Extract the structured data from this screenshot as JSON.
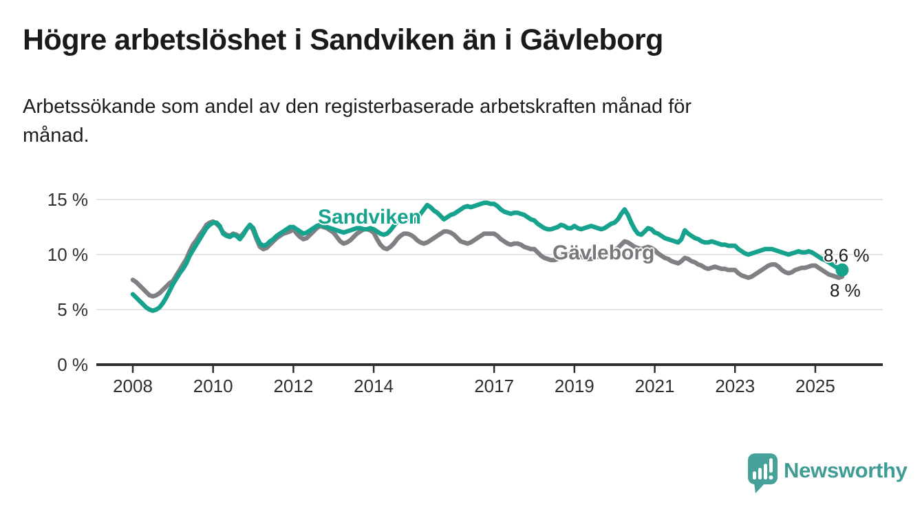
{
  "header": {
    "title": "Högre arbetslöshet i Sandviken än i Gävleborg",
    "subtitle": "Arbetssökande som andel av den registerbaserade arbetskraften månad för månad.",
    "subtitle_lines": [
      "Arbetssökande som andel av den registerbaserade arbetskraften månad för",
      "månad."
    ]
  },
  "chart_data": {
    "type": "line",
    "title": "Högre arbetslöshet i Sandviken än i Gävleborg",
    "xlabel": "",
    "ylabel": "",
    "unit": "%",
    "frequency": "monthly",
    "start": "2008-01",
    "end": "2025-09",
    "ylim": [
      0,
      15.5
    ],
    "grid": true,
    "grid_color": "#e4e4e4",
    "axis_color": "#2e2e2e",
    "yticks": [
      {
        "value": 0,
        "label": "0 %"
      },
      {
        "value": 5,
        "label": "5 %"
      },
      {
        "value": 10,
        "label": "10 %"
      },
      {
        "value": 15,
        "label": "15 %"
      }
    ],
    "xticks": [
      {
        "value": 2008,
        "label": "2008"
      },
      {
        "value": 2010,
        "label": "2010"
      },
      {
        "value": 2012,
        "label": "2012"
      },
      {
        "value": 2014,
        "label": "2014"
      },
      {
        "value": 2017,
        "label": "2017"
      },
      {
        "value": 2019,
        "label": "2019"
      },
      {
        "value": 2021,
        "label": "2021"
      },
      {
        "value": 2023,
        "label": "2023"
      },
      {
        "value": 2025,
        "label": "2025"
      }
    ],
    "series": [
      {
        "name": "Sandviken",
        "color": "#17a28e",
        "final_label": "8,6 %",
        "final_value": 8.6,
        "end_dot": true,
        "values": [
          6.4,
          6.1,
          5.8,
          5.5,
          5.2,
          5.0,
          4.9,
          5.0,
          5.2,
          5.6,
          6.1,
          6.7,
          7.3,
          7.8,
          8.3,
          8.7,
          9.2,
          9.9,
          10.4,
          10.9,
          11.4,
          11.9,
          12.4,
          12.7,
          12.9,
          12.9,
          12.6,
          11.9,
          11.7,
          11.6,
          11.8,
          11.7,
          11.4,
          11.8,
          12.3,
          12.7,
          12.4,
          11.6,
          11.0,
          10.8,
          10.9,
          11.2,
          11.4,
          11.7,
          11.9,
          12.1,
          12.3,
          12.5,
          12.5,
          12.3,
          12.1,
          11.9,
          12.0,
          12.2,
          12.4,
          12.6,
          12.7,
          12.6,
          12.5,
          12.4,
          12.3,
          12.2,
          12.1,
          12.0,
          12.1,
          12.2,
          12.3,
          12.4,
          12.4,
          12.3,
          12.3,
          12.4,
          12.3,
          12.1,
          11.9,
          11.8,
          11.9,
          12.2,
          12.6,
          13.0,
          13.3,
          13.4,
          13.3,
          13.1,
          13.0,
          13.3,
          13.7,
          14.1,
          14.5,
          14.3,
          14.0,
          13.8,
          13.5,
          13.2,
          13.4,
          13.6,
          13.7,
          13.9,
          14.1,
          14.3,
          14.4,
          14.3,
          14.4,
          14.5,
          14.6,
          14.7,
          14.7,
          14.6,
          14.6,
          14.4,
          14.1,
          13.9,
          13.8,
          13.7,
          13.8,
          13.8,
          13.7,
          13.6,
          13.4,
          13.2,
          13.1,
          12.8,
          12.6,
          12.4,
          12.3,
          12.3,
          12.4,
          12.5,
          12.7,
          12.6,
          12.4,
          12.4,
          12.6,
          12.4,
          12.3,
          12.4,
          12.5,
          12.6,
          12.5,
          12.4,
          12.3,
          12.4,
          12.6,
          12.8,
          12.9,
          13.2,
          13.7,
          14.1,
          13.6,
          12.9,
          12.3,
          11.9,
          11.8,
          12.1,
          12.4,
          12.3,
          12.0,
          11.9,
          11.7,
          11.5,
          11.4,
          11.3,
          11.2,
          11.1,
          11.4,
          12.2,
          11.9,
          11.7,
          11.5,
          11.4,
          11.2,
          11.1,
          11.1,
          11.2,
          11.1,
          11.0,
          10.9,
          10.9,
          10.8,
          10.8,
          10.8,
          10.5,
          10.3,
          10.1,
          10.0,
          10.1,
          10.2,
          10.3,
          10.4,
          10.5,
          10.5,
          10.5,
          10.4,
          10.3,
          10.2,
          10.1,
          10.0,
          10.1,
          10.2,
          10.3,
          10.2,
          10.2,
          10.3,
          10.2,
          10.0,
          9.8,
          9.6,
          9.5,
          9.3,
          9.1,
          8.9,
          8.7,
          8.6
        ]
      },
      {
        "name": "Gävleborg",
        "color": "#7e8084",
        "final_label": "8 %",
        "final_value": 8.0,
        "end_dot": false,
        "values": [
          7.7,
          7.5,
          7.2,
          6.9,
          6.6,
          6.3,
          6.2,
          6.3,
          6.5,
          6.8,
          7.1,
          7.4,
          7.6,
          8.1,
          8.6,
          9.1,
          9.6,
          10.3,
          10.9,
          11.3,
          11.8,
          12.2,
          12.7,
          12.9,
          13.0,
          12.8,
          12.5,
          12.0,
          11.8,
          11.7,
          11.9,
          11.8,
          11.6,
          11.9,
          12.3,
          12.7,
          12.2,
          11.4,
          10.7,
          10.5,
          10.6,
          10.9,
          11.2,
          11.5,
          11.7,
          11.9,
          12.0,
          12.1,
          12.3,
          11.9,
          11.6,
          11.4,
          11.5,
          11.8,
          12.1,
          12.4,
          12.6,
          12.5,
          12.4,
          12.2,
          12.0,
          11.6,
          11.2,
          11.0,
          11.1,
          11.3,
          11.6,
          11.9,
          12.1,
          12.3,
          12.3,
          12.2,
          12.0,
          11.4,
          10.9,
          10.6,
          10.5,
          10.7,
          11.0,
          11.4,
          11.7,
          11.9,
          11.9,
          11.8,
          11.6,
          11.3,
          11.1,
          11.0,
          11.1,
          11.3,
          11.5,
          11.7,
          11.9,
          12.1,
          12.1,
          12.0,
          11.8,
          11.5,
          11.2,
          11.1,
          11.0,
          11.1,
          11.3,
          11.5,
          11.7,
          11.9,
          11.9,
          11.9,
          11.9,
          11.7,
          11.4,
          11.2,
          11.0,
          10.9,
          11.0,
          11.0,
          10.9,
          10.7,
          10.6,
          10.5,
          10.5,
          10.2,
          9.9,
          9.7,
          9.6,
          9.5,
          9.5,
          9.6,
          9.7,
          9.9,
          10.0,
          10.1,
          10.1,
          9.9,
          9.8,
          9.7,
          9.6,
          9.6,
          9.7,
          9.8,
          9.9,
          10.0,
          10.1,
          10.3,
          10.4,
          10.6,
          10.9,
          11.2,
          11.1,
          10.9,
          10.7,
          10.6,
          10.5,
          10.6,
          10.7,
          10.6,
          10.4,
          10.1,
          9.9,
          9.7,
          9.6,
          9.4,
          9.3,
          9.2,
          9.4,
          9.7,
          9.6,
          9.4,
          9.3,
          9.1,
          9.0,
          8.8,
          8.7,
          8.8,
          8.9,
          8.8,
          8.7,
          8.7,
          8.6,
          8.6,
          8.6,
          8.3,
          8.1,
          8.0,
          7.9,
          8.0,
          8.2,
          8.4,
          8.6,
          8.8,
          9.0,
          9.1,
          9.1,
          8.9,
          8.6,
          8.4,
          8.3,
          8.4,
          8.6,
          8.7,
          8.8,
          8.8,
          8.9,
          9.0,
          9.0,
          8.8,
          8.6,
          8.4,
          8.2,
          8.1,
          8.0,
          7.9,
          8.0
        ]
      }
    ]
  },
  "logo": {
    "text": "Newsworthy",
    "text_color": "#3f9c95",
    "icon_color": "#46a19a",
    "icon": "speech-bubble-bar-chart"
  }
}
